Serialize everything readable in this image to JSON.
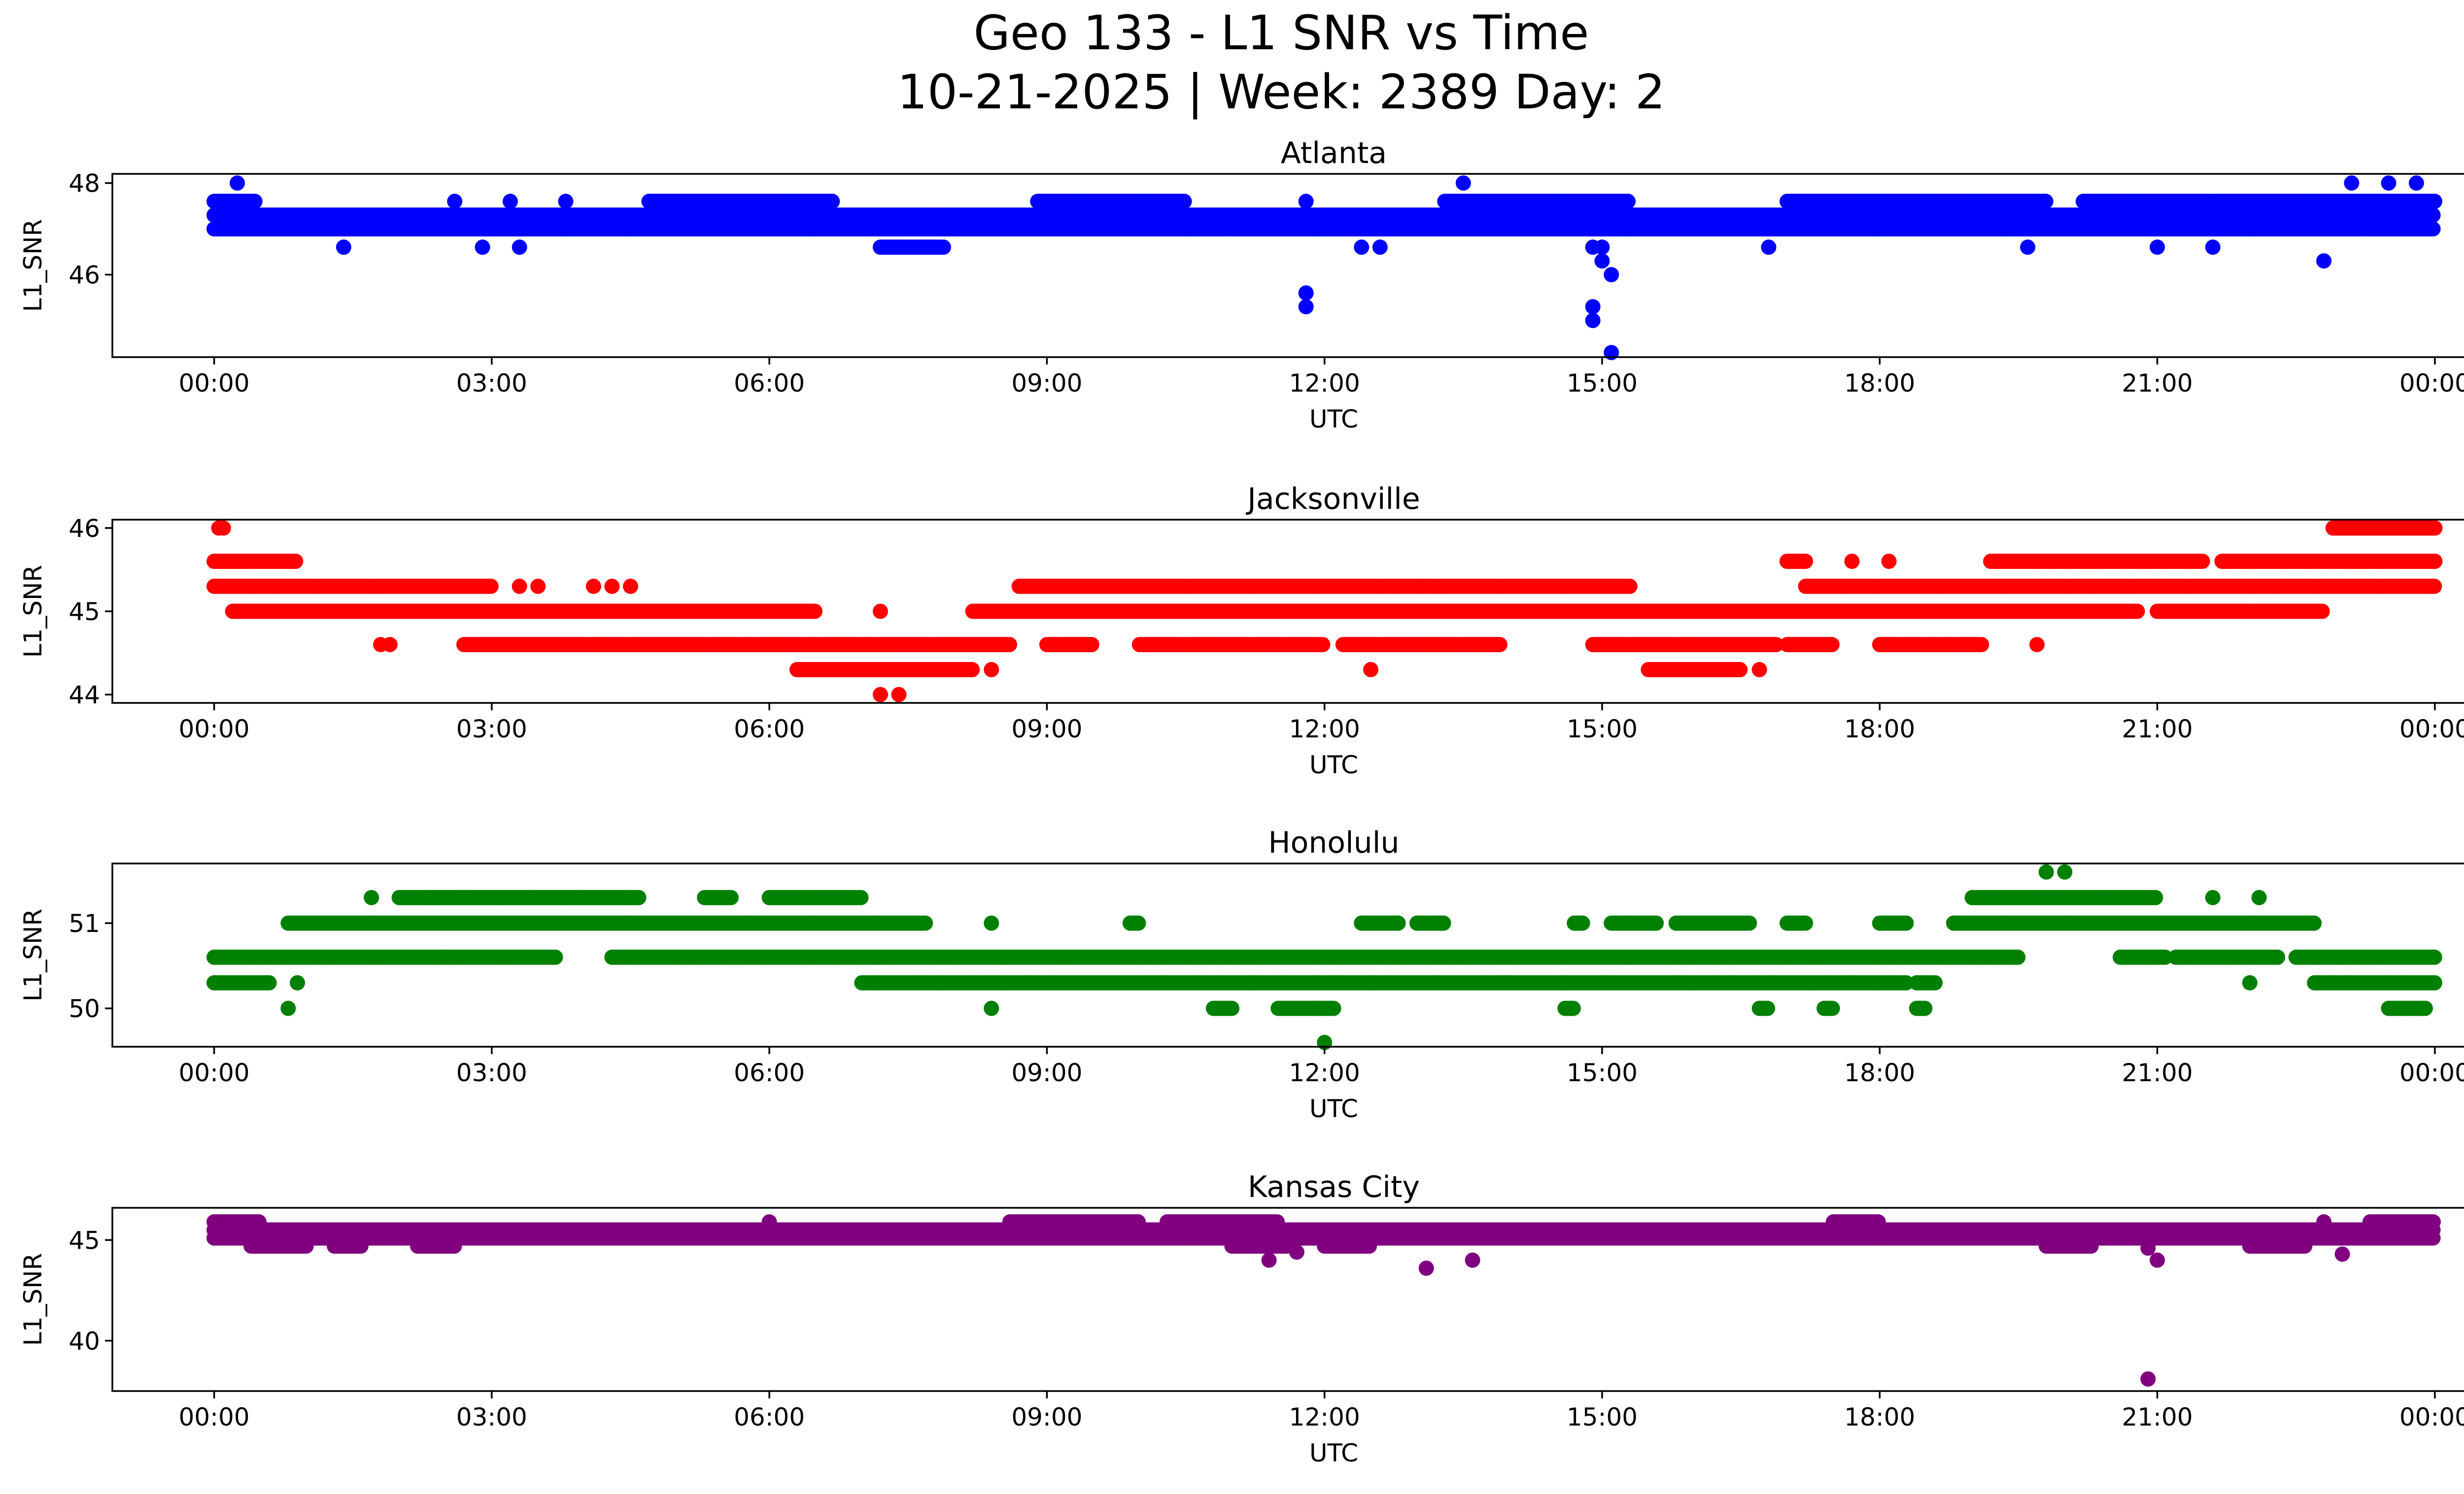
{
  "figure": {
    "title_line1": "Geo 133 - L1 SNR vs Time",
    "title_line2": "10-21-2025 | Week: 2389 Day: 2"
  },
  "chart_data": [
    {
      "type": "scatter",
      "title": "Atlanta",
      "xlabel": "UTC",
      "ylabel": "L1_SNR",
      "color": "#0000ff",
      "xlim": [
        -1.1,
        25.3
      ],
      "ylim": [
        44.2,
        48.2
      ],
      "yticks": [
        46,
        48
      ],
      "xticks": [
        "00:00",
        "03:00",
        "06:00",
        "09:00",
        "12:00",
        "15:00",
        "18:00",
        "21:00",
        "00:00"
      ],
      "bands": [
        {
          "y": 47.3,
          "ranges": [
            [
              0.0,
              24.0
            ]
          ]
        },
        {
          "y": 47.0,
          "ranges": [
            [
              0.0,
              24.0
            ]
          ]
        },
        {
          "y": 47.6,
          "ranges": [
            [
              0.0,
              0.45
            ],
            [
              4.7,
              6.7
            ],
            [
              8.9,
              10.5
            ],
            [
              13.3,
              15.3
            ],
            [
              17.0,
              19.8
            ],
            [
              20.2,
              21.6
            ],
            [
              21.6,
              24.0
            ]
          ]
        },
        {
          "y": 46.6,
          "ranges": [
            [
              7.2,
              7.9
            ]
          ]
        }
      ],
      "outliers": [
        [
          0.25,
          48.0
        ],
        [
          1.4,
          46.6
        ],
        [
          2.6,
          47.6
        ],
        [
          2.9,
          46.6
        ],
        [
          3.3,
          46.6
        ],
        [
          3.2,
          47.6
        ],
        [
          3.8,
          47.6
        ],
        [
          11.8,
          45.6
        ],
        [
          11.8,
          45.3
        ],
        [
          11.8,
          47.6
        ],
        [
          12.6,
          46.6
        ],
        [
          12.4,
          46.6
        ],
        [
          13.5,
          48.0
        ],
        [
          14.9,
          46.6
        ],
        [
          14.9,
          45.3
        ],
        [
          14.9,
          45.0
        ],
        [
          15.0,
          46.3
        ],
        [
          15.1,
          46.0
        ],
        [
          15.1,
          44.3
        ],
        [
          15.0,
          46.6
        ],
        [
          16.8,
          46.6
        ],
        [
          19.6,
          46.6
        ],
        [
          21.0,
          46.6
        ],
        [
          21.6,
          46.6
        ],
        [
          22.8,
          46.3
        ],
        [
          23.1,
          48.0
        ],
        [
          23.5,
          48.0
        ],
        [
          23.8,
          48.0
        ]
      ]
    },
    {
      "type": "scatter",
      "title": "Jacksonville",
      "xlabel": "UTC",
      "ylabel": "L1_SNR",
      "color": "#ff0000",
      "xlim": [
        -1.1,
        25.3
      ],
      "ylim": [
        43.9,
        46.1
      ],
      "yticks": [
        44,
        45,
        46
      ],
      "xticks": [
        "00:00",
        "03:00",
        "06:00",
        "09:00",
        "12:00",
        "15:00",
        "18:00",
        "21:00",
        "00:00"
      ],
      "bands": [
        {
          "y": 45.6,
          "ranges": [
            [
              0.0,
              0.9
            ],
            [
              17.0,
              17.2
            ],
            [
              19.2,
              21.5
            ],
            [
              21.7,
              24.0
            ]
          ]
        },
        {
          "y": 45.3,
          "ranges": [
            [
              0.0,
              3.0
            ],
            [
              8.7,
              15.3
            ],
            [
              17.2,
              22.3
            ],
            [
              22.3,
              24.0
            ]
          ]
        },
        {
          "y": 45.0,
          "ranges": [
            [
              0.2,
              6.5
            ],
            [
              8.2,
              20.8
            ],
            [
              21.0,
              22.8
            ]
          ]
        },
        {
          "y": 44.6,
          "ranges": [
            [
              2.7,
              8.6
            ],
            [
              9.0,
              9.5
            ],
            [
              10.0,
              12.0
            ],
            [
              12.2,
              13.9
            ],
            [
              14.9,
              16.9
            ],
            [
              17.0,
              17.5
            ],
            [
              18.0,
              19.1
            ]
          ]
        },
        {
          "y": 44.3,
          "ranges": [
            [
              6.3,
              8.2
            ],
            [
              15.5,
              16.5
            ]
          ]
        },
        {
          "y": 46.0,
          "ranges": [
            [
              22.9,
              24.0
            ]
          ]
        }
      ],
      "outliers": [
        [
          0.05,
          46.0
        ],
        [
          0.1,
          46.0
        ],
        [
          1.8,
          44.6
        ],
        [
          1.9,
          44.6
        ],
        [
          3.5,
          45.3
        ],
        [
          3.3,
          45.3
        ],
        [
          4.1,
          45.3
        ],
        [
          4.3,
          45.3
        ],
        [
          4.5,
          45.3
        ],
        [
          7.2,
          44.0
        ],
        [
          7.4,
          44.0
        ],
        [
          7.2,
          45.0
        ],
        [
          8.4,
          44.3
        ],
        [
          12.5,
          44.3
        ],
        [
          12.6,
          45.3
        ],
        [
          12.8,
          45.3
        ],
        [
          13.0,
          45.3
        ],
        [
          16.7,
          44.3
        ],
        [
          17.7,
          45.6
        ],
        [
          18.1,
          45.6
        ],
        [
          19.7,
          44.6
        ],
        [
          24.0,
          45.6
        ]
      ]
    },
    {
      "type": "scatter",
      "title": "Honolulu",
      "xlabel": "UTC",
      "ylabel": "L1_SNR",
      "color": "#008000",
      "xlim": [
        -1.1,
        25.3
      ],
      "ylim": [
        49.55,
        51.7
      ],
      "yticks": [
        50,
        51
      ],
      "xticks": [
        "00:00",
        "03:00",
        "06:00",
        "09:00",
        "12:00",
        "15:00",
        "18:00",
        "21:00",
        "00:00"
      ],
      "bands": [
        {
          "y": 50.6,
          "ranges": [
            [
              0.0,
              2.5
            ],
            [
              2.5,
              3.7
            ],
            [
              4.3,
              6.8
            ],
            [
              6.8,
              19.5
            ],
            [
              20.6,
              21.1
            ],
            [
              21.2,
              22.3
            ],
            [
              22.5,
              24.0
            ]
          ]
        },
        {
          "y": 50.3,
          "ranges": [
            [
              0.0,
              0.6
            ],
            [
              7.0,
              12.5
            ],
            [
              12.5,
              18.3
            ],
            [
              18.4,
              18.6
            ],
            [
              22.7,
              24.0
            ]
          ]
        },
        {
          "y": 51.0,
          "ranges": [
            [
              0.8,
              7.7
            ],
            [
              9.9,
              10.0
            ],
            [
              12.4,
              12.8
            ],
            [
              13.0,
              13.3
            ],
            [
              14.7,
              14.8
            ],
            [
              15.1,
              15.6
            ],
            [
              15.8,
              16.6
            ],
            [
              17.0,
              17.2
            ],
            [
              18.0,
              18.3
            ],
            [
              18.8,
              22.7
            ]
          ]
        },
        {
          "y": 51.3,
          "ranges": [
            [
              2.0,
              4.5
            ],
            [
              2.3,
              4.6
            ],
            [
              5.3,
              5.6
            ],
            [
              6.0,
              7.0
            ],
            [
              19.0,
              21.0
            ]
          ]
        },
        {
          "y": 50.0,
          "ranges": [
            [
              10.8,
              11.0
            ],
            [
              11.5,
              11.9
            ],
            [
              11.9,
              12.1
            ],
            [
              14.6,
              14.7
            ],
            [
              16.7,
              16.8
            ],
            [
              17.4,
              17.5
            ],
            [
              18.4,
              18.5
            ],
            [
              23.5,
              23.9
            ]
          ]
        }
      ],
      "outliers": [
        [
          0.8,
          50.0
        ],
        [
          0.9,
          50.3
        ],
        [
          1.7,
          51.3
        ],
        [
          8.4,
          50.0
        ],
        [
          8.4,
          51.0
        ],
        [
          12.0,
          49.6
        ],
        [
          19.8,
          51.6
        ],
        [
          20.0,
          51.6
        ],
        [
          21.6,
          51.3
        ],
        [
          22.1,
          51.3
        ],
        [
          22.0,
          50.3
        ],
        [
          23.0,
          50.6
        ]
      ]
    },
    {
      "type": "scatter",
      "title": "Kansas City",
      "xlabel": "UTC",
      "ylabel": "L1_SNR",
      "color": "#800080",
      "xlim": [
        -1.1,
        25.3
      ],
      "ylim": [
        37.5,
        46.6
      ],
      "yticks": [
        40,
        45
      ],
      "xticks": [
        "00:00",
        "03:00",
        "06:00",
        "09:00",
        "12:00",
        "15:00",
        "18:00",
        "21:00",
        "00:00"
      ],
      "bands": [
        {
          "y": 45.5,
          "ranges": [
            [
              0.0,
              24.0
            ]
          ]
        },
        {
          "y": 45.1,
          "ranges": [
            [
              0.0,
              24.0
            ]
          ]
        },
        {
          "y": 45.9,
          "ranges": [
            [
              0.0,
              0.5
            ],
            [
              8.6,
              10.0
            ],
            [
              10.3,
              11.5
            ],
            [
              17.5,
              18.0
            ],
            [
              23.3,
              24.0
            ]
          ]
        },
        {
          "y": 44.7,
          "ranges": [
            [
              0.4,
              1.0
            ],
            [
              1.3,
              1.6
            ],
            [
              2.2,
              2.6
            ],
            [
              11.0,
              11.6
            ],
            [
              12.0,
              12.5
            ],
            [
              19.8,
              20.3
            ],
            [
              22.0,
              22.6
            ]
          ]
        }
      ],
      "outliers": [
        [
          6.0,
          45.9
        ],
        [
          11.4,
          44.0
        ],
        [
          11.7,
          44.4
        ],
        [
          13.1,
          43.6
        ],
        [
          13.6,
          44.0
        ],
        [
          20.9,
          38.1
        ],
        [
          21.0,
          44.0
        ],
        [
          20.9,
          44.6
        ],
        [
          23.0,
          44.3
        ],
        [
          22.8,
          45.9
        ]
      ]
    }
  ]
}
